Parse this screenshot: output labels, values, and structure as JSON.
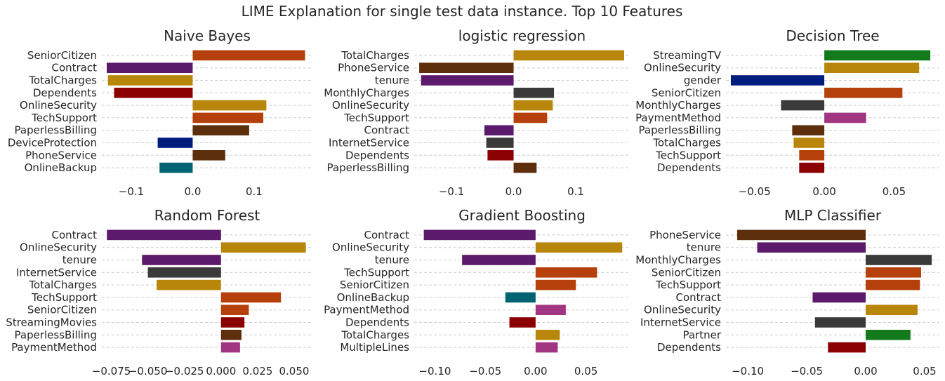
{
  "suptitle": "LIME Explanation for single test data instance.  Top 10 Features",
  "chart_data": [
    {
      "type": "bar",
      "orientation": "horizontal",
      "title": "Naive Bayes",
      "categories": [
        "SeniorCitizen",
        "Contract",
        "TotalCharges",
        "Dependents",
        "OnlineSecurity",
        "TechSupport",
        "PaperlessBilling",
        "DeviceProtection",
        "PhoneService",
        "OnlineBackup"
      ],
      "values": [
        0.183,
        -0.14,
        -0.138,
        -0.128,
        0.12,
        0.115,
        0.092,
        -0.057,
        0.053,
        -0.054
      ],
      "colors": [
        "#b5400b",
        "#5b1a6b",
        "#b8860b",
        "#8b0000",
        "#b8860b",
        "#b5400b",
        "#5e2f0d",
        "#001c7f",
        "#5e2f0d",
        "#006374"
      ],
      "xlim": [
        -0.148,
        0.195
      ],
      "xticks": [
        -0.1,
        0.0,
        0.1
      ],
      "xtick_labels": [
        "−0.1",
        "0.0",
        "0.1"
      ],
      "grid": "y"
    },
    {
      "type": "bar",
      "orientation": "horizontal",
      "title": "logistic regression",
      "categories": [
        "TotalCharges",
        "PhoneService",
        "tenure",
        "MonthlyCharges",
        "OnlineSecurity",
        "TechSupport",
        "Contract",
        "InternetService",
        "Dependents",
        "PaperlessBilling"
      ],
      "values": [
        0.178,
        -0.152,
        -0.149,
        0.065,
        0.063,
        0.054,
        -0.047,
        -0.044,
        -0.042,
        0.037
      ],
      "colors": [
        "#b8860b",
        "#5e2f0d",
        "#5b1a6b",
        "#3a3a3a",
        "#b8860b",
        "#b5400b",
        "#5b1a6b",
        "#3a3a3a",
        "#8b0000",
        "#5e2f0d"
      ],
      "xlim": [
        -0.16,
        0.187
      ],
      "xticks": [
        -0.1,
        0.0,
        0.1
      ],
      "xtick_labels": [
        "−0.1",
        "0.0",
        "0.1"
      ],
      "grid": "y"
    },
    {
      "type": "bar",
      "orientation": "horizontal",
      "title": "Decision Tree",
      "categories": [
        "StreamingTV",
        "OnlineSecurity",
        "gender",
        "SeniorCitizen",
        "MonthlyCharges",
        "PaymentMethod",
        "PaperlessBilling",
        "TotalCharges",
        "TechSupport",
        "Dependents"
      ],
      "values": [
        0.076,
        0.068,
        -0.067,
        0.056,
        -0.031,
        0.03,
        -0.023,
        -0.022,
        -0.018,
        -0.018
      ],
      "colors": [
        "#127a1b",
        "#b8860b",
        "#001c7f",
        "#b5400b",
        "#3a3a3a",
        "#a23582",
        "#5e2f0d",
        "#b8860b",
        "#b5400b",
        "#8b0000"
      ],
      "xlim": [
        -0.0705,
        0.0825
      ],
      "xticks": [
        -0.05,
        0.0,
        0.05
      ],
      "xtick_labels": [
        "−0.05",
        "0.00",
        "0.05"
      ],
      "grid": "y"
    },
    {
      "type": "bar",
      "orientation": "horizontal",
      "title": "Random Forest",
      "categories": [
        "Contract",
        "OnlineSecurity",
        "tenure",
        "InternetService",
        "TotalCharges",
        "TechSupport",
        "SeniorCitizen",
        "StreamingMovies",
        "PaperlessBilling",
        "PaymentMethod"
      ],
      "values": [
        -0.078,
        0.058,
        -0.054,
        -0.05,
        -0.044,
        0.041,
        0.019,
        0.016,
        0.014,
        0.013
      ],
      "colors": [
        "#5b1a6b",
        "#b8860b",
        "#5b1a6b",
        "#3a3a3a",
        "#b8860b",
        "#b5400b",
        "#b5400b",
        "#8b0000",
        "#5e2f0d",
        "#a23582"
      ],
      "xlim": [
        -0.0815,
        0.0625
      ],
      "xticks": [
        -0.075,
        -0.05,
        -0.025,
        0.0,
        0.025,
        0.05
      ],
      "xtick_labels": [
        "−0.075",
        "−0.050",
        "−0.025",
        "0.000",
        "0.025",
        "0.050"
      ],
      "grid": "y"
    },
    {
      "type": "bar",
      "orientation": "horizontal",
      "title": "Gradient Boosting",
      "categories": [
        "Contract",
        "OnlineSecurity",
        "tenure",
        "TechSupport",
        "SeniorCitizen",
        "OnlineBackup",
        "PaymentMethod",
        "Dependents",
        "TotalCharges",
        "MultipleLines"
      ],
      "values": [
        -0.111,
        0.086,
        -0.073,
        0.061,
        0.04,
        -0.03,
        0.03,
        -0.026,
        0.024,
        0.022
      ],
      "colors": [
        "#5b1a6b",
        "#b8860b",
        "#5b1a6b",
        "#b5400b",
        "#b5400b",
        "#006374",
        "#a23582",
        "#8b0000",
        "#b8860b",
        "#a23582"
      ],
      "xlim": [
        -0.1205,
        0.0935
      ],
      "xticks": [
        -0.1,
        -0.05,
        0.0,
        0.05
      ],
      "xtick_labels": [
        "−0.10",
        "−0.05",
        "0.00",
        "0.05"
      ],
      "grid": "y"
    },
    {
      "type": "bar",
      "orientation": "horizontal",
      "title": "MLP Classifier",
      "categories": [
        "PhoneService",
        "tenure",
        "MonthlyCharges",
        "SeniorCitizen",
        "TechSupport",
        "Contract",
        "OnlineSecurity",
        "InternetService",
        "Partner",
        "Dependents"
      ],
      "values": [
        -0.109,
        -0.092,
        0.056,
        0.047,
        0.046,
        -0.045,
        0.044,
        -0.043,
        0.038,
        -0.032
      ],
      "colors": [
        "#5e2f0d",
        "#5b1a6b",
        "#3a3a3a",
        "#b5400b",
        "#b5400b",
        "#5b1a6b",
        "#b8860b",
        "#3a3a3a",
        "#127a1b",
        "#8b0000"
      ],
      "xlim": [
        -0.1185,
        0.0625
      ],
      "xticks": [
        -0.1,
        -0.05,
        0.0,
        0.05
      ],
      "xtick_labels": [
        "−0.10",
        "−0.05",
        "0.00",
        "0.05"
      ],
      "grid": "y"
    }
  ]
}
